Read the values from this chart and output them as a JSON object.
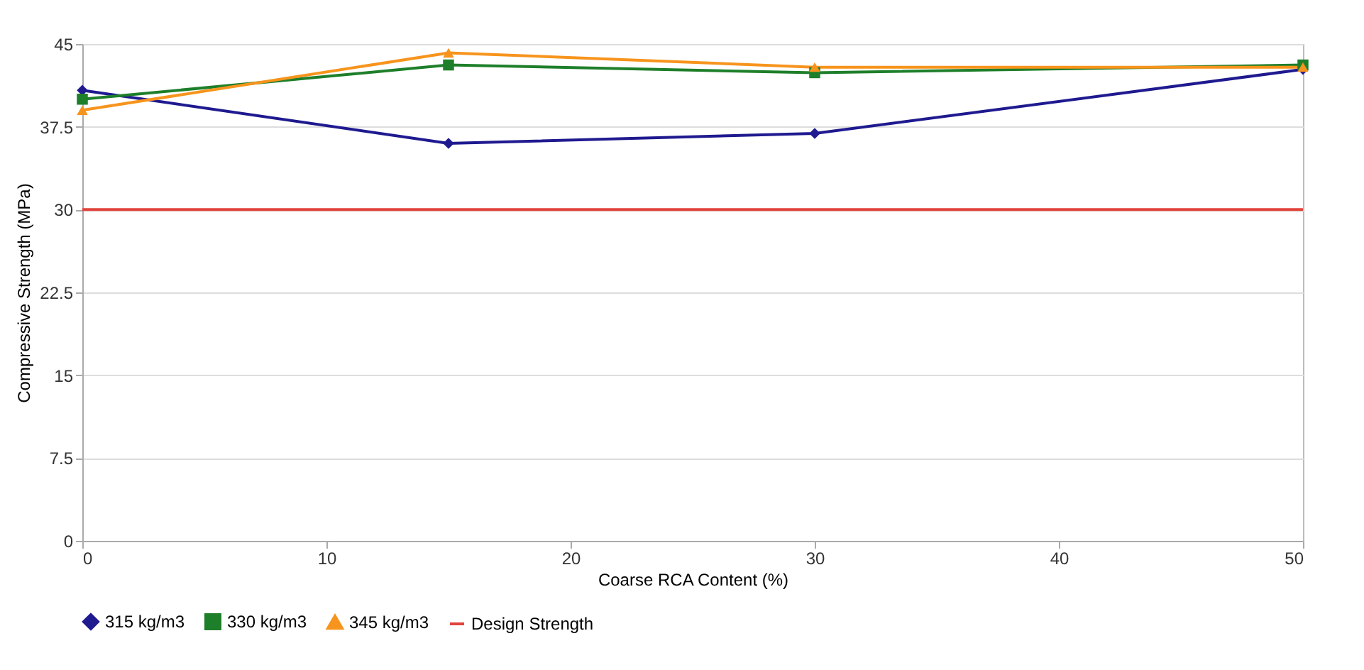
{
  "chart_data": {
    "type": "line",
    "xlabel": "Coarse RCA Content (%)",
    "ylabel": "Compressive Strength (MPa)",
    "x": [
      0,
      15,
      30,
      50
    ],
    "series": [
      {
        "name": "315 kg/m3",
        "color": "#1f1a8f",
        "marker": "diamond",
        "values": [
          40.8,
          36.0,
          36.9,
          42.7
        ]
      },
      {
        "name": "330 kg/m3",
        "color": "#1e7f2a",
        "marker": "square",
        "values": [
          40.0,
          43.1,
          42.4,
          43.1
        ]
      },
      {
        "name": "345 kg/m3",
        "color": "#f7941d",
        "marker": "triangle",
        "values": [
          39.0,
          44.2,
          42.9,
          42.9
        ]
      }
    ],
    "ref_lines": [
      {
        "axis": "y",
        "value": 30,
        "label": "Design Strength",
        "color": "#e0443c"
      }
    ],
    "xlim": [
      0,
      50
    ],
    "xticks": [
      0,
      10,
      20,
      30,
      40,
      50
    ],
    "ylim": [
      0,
      45
    ],
    "yticks": [
      0,
      7.5,
      15,
      22.5,
      30,
      37.5,
      45
    ],
    "grid": "y",
    "legend": "bottom"
  }
}
